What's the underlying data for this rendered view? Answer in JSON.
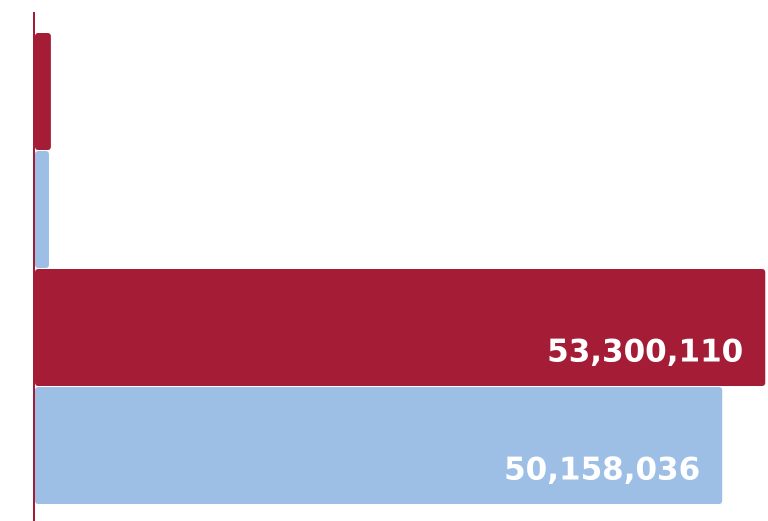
{
  "chart_data": {
    "type": "barh",
    "values": [
      1160000,
      1020000,
      53300110,
      50158036
    ],
    "value_labels": [
      null,
      null,
      "53,300,110",
      "50,158,036"
    ],
    "colors": [
      "#a51c36",
      "#9dbfe6",
      "#a51c36",
      "#9dbfe6"
    ],
    "xlim": [
      0,
      53500000
    ]
  }
}
